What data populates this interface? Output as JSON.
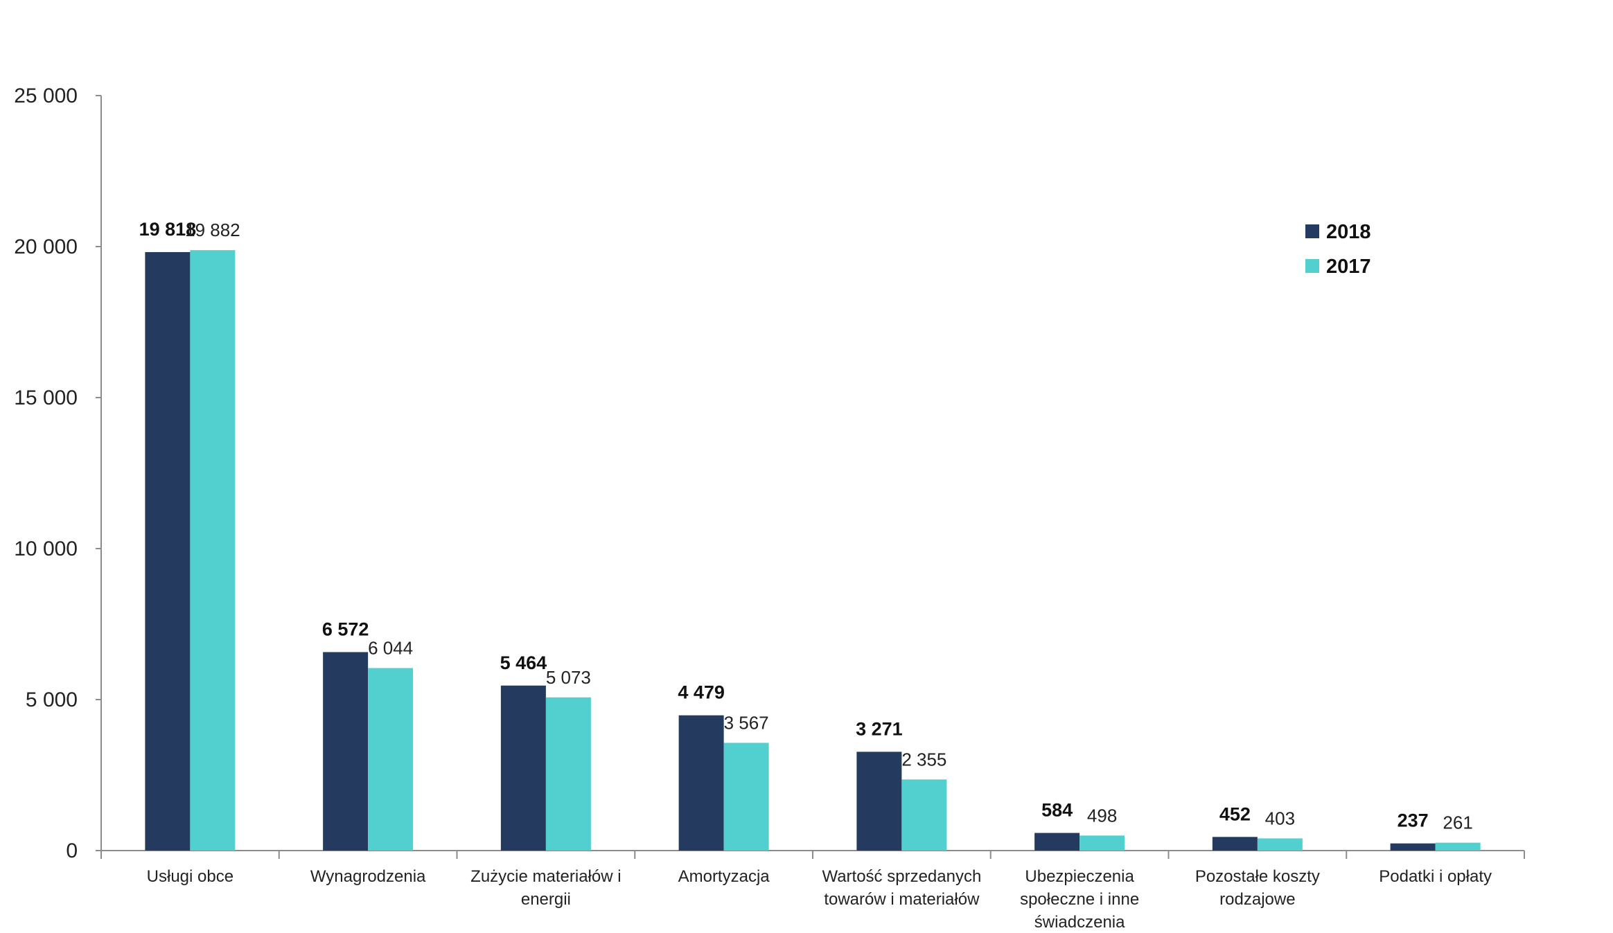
{
  "chart_data": {
    "type": "bar",
    "title": "",
    "xlabel": "",
    "ylabel": "",
    "ylim": [
      0,
      25000
    ],
    "yticks": [
      0,
      5000,
      10000,
      15000,
      20000,
      25000
    ],
    "ytick_labels": [
      "0",
      "5 000",
      "10 000",
      "15 000",
      "20 000",
      "25 000"
    ],
    "grid": false,
    "legend_position": "top-right",
    "categories": [
      [
        "Usługi obce"
      ],
      [
        "Wynagrodzenia"
      ],
      [
        "Zużycie materiałów i",
        "energii"
      ],
      [
        "Amortyzacja"
      ],
      [
        "Wartość sprzedanych",
        "towarów i materiałów"
      ],
      [
        "Ubezpieczenia",
        "społeczne i inne",
        "świadczenia"
      ],
      [
        "Pozostałe koszty",
        "rodzajowe"
      ],
      [
        "Podatki i opłaty"
      ]
    ],
    "series": [
      {
        "name": "2018",
        "color": "#243a5e",
        "values": [
          19818,
          6572,
          5464,
          4479,
          3271,
          584,
          452,
          237
        ],
        "labels": [
          "19 818",
          "6 572",
          "5 464",
          "4 479",
          "3 271",
          "584",
          "452",
          "237"
        ]
      },
      {
        "name": "2017",
        "color": "#52d0cf",
        "values": [
          19882,
          6044,
          5073,
          3567,
          2355,
          498,
          403,
          261
        ],
        "labels": [
          "19 882",
          "6 044",
          "5 073",
          "3 567",
          "2 355",
          "498",
          "403",
          "261"
        ]
      }
    ]
  }
}
